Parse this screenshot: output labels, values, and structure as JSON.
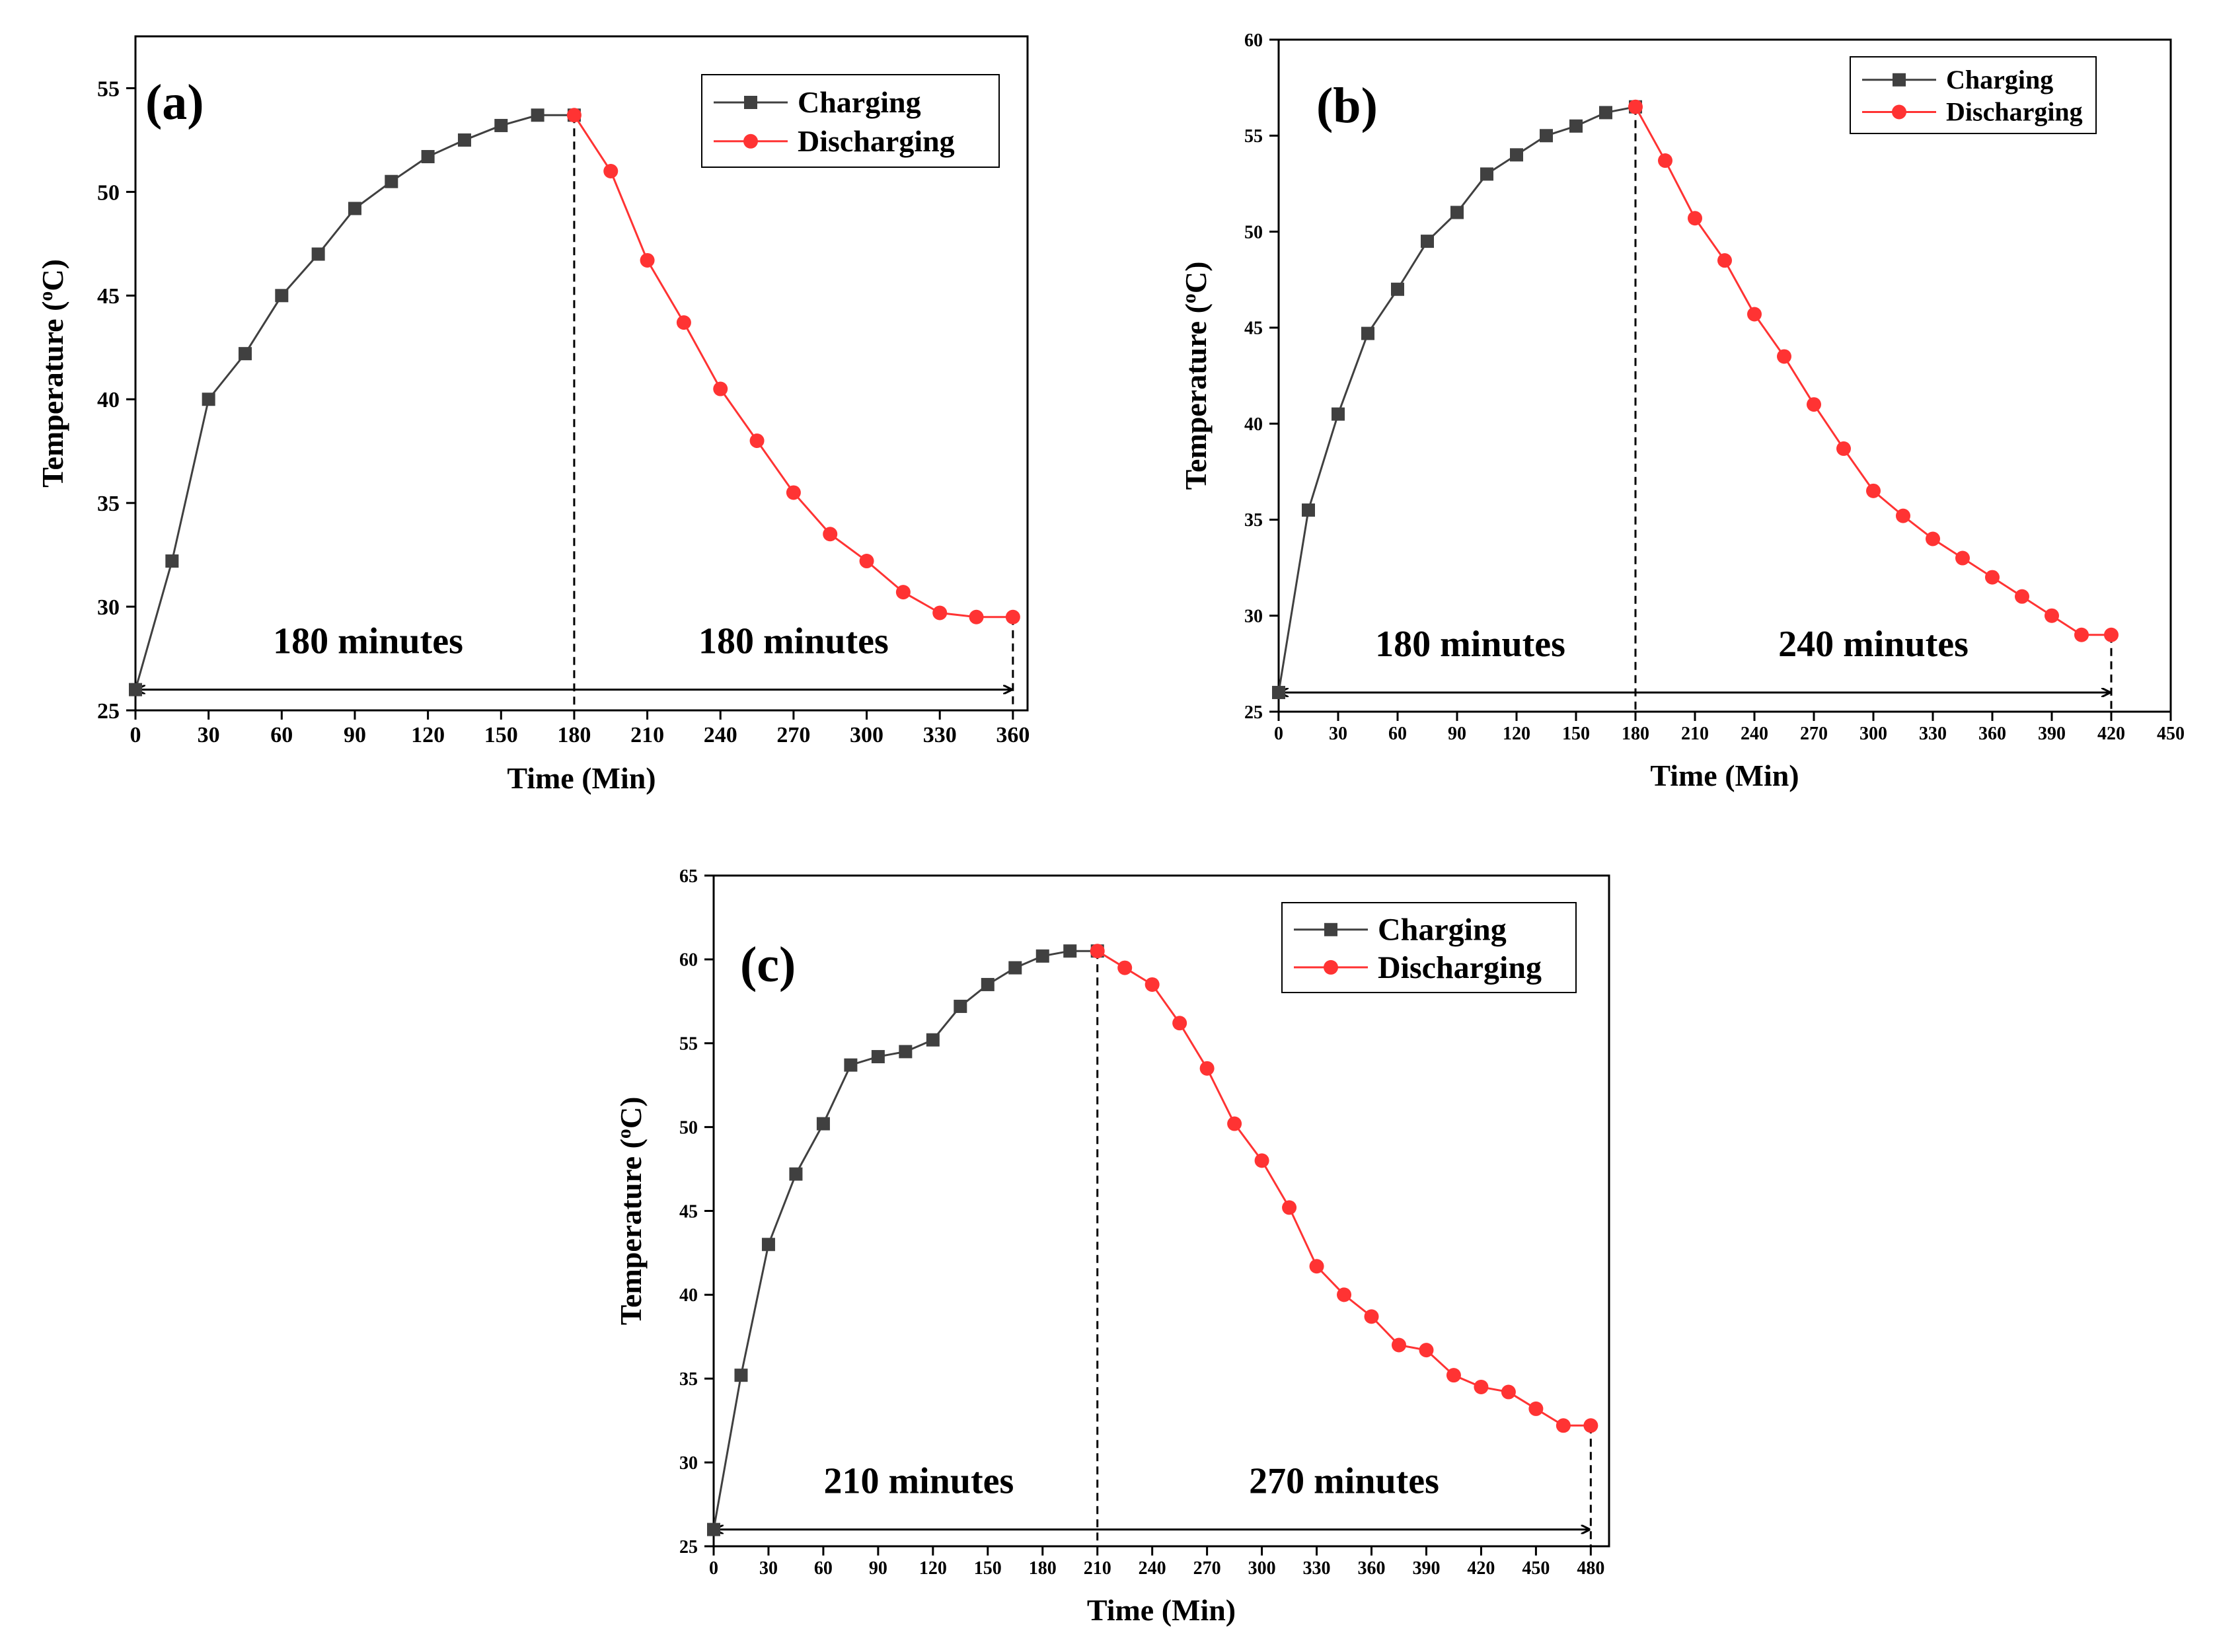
{
  "chart_data": [
    {
      "type": "line",
      "panel_label": "(a)",
      "xlabel": "Time (Min)",
      "ylabel_main": "Temperature (",
      "ylabel_sup": "o",
      "ylabel_end": "C)",
      "xlim": [
        0,
        366
      ],
      "ylim": [
        25,
        57.5
      ],
      "x_ticks": [
        0,
        30,
        60,
        90,
        120,
        150,
        180,
        210,
        240,
        270,
        300,
        330,
        360
      ],
      "y_ticks": [
        25,
        30,
        35,
        40,
        45,
        50,
        55
      ],
      "divider_x": 180,
      "end_x": 360,
      "arrow_y": 26,
      "annotations": [
        "180 minutes",
        "180 minutes"
      ],
      "series": [
        {
          "name": "Charging",
          "color": "#404040",
          "marker": "square",
          "x": [
            0,
            15,
            30,
            45,
            60,
            75,
            90,
            105,
            120,
            135,
            150,
            165,
            180
          ],
          "y": [
            26,
            32.2,
            40,
            42.2,
            45,
            47,
            49.2,
            50.5,
            51.7,
            52.5,
            53.2,
            53.7,
            53.7
          ]
        },
        {
          "name": "Discharging",
          "color": "#ff3333",
          "marker": "circle",
          "x": [
            180,
            195,
            210,
            225,
            240,
            255,
            270,
            285,
            300,
            315,
            330,
            345,
            360
          ],
          "y": [
            53.7,
            51,
            46.7,
            43.7,
            40.5,
            38,
            35.5,
            33.5,
            32.2,
            30.7,
            29.7,
            29.5,
            29.5
          ]
        }
      ]
    },
    {
      "type": "line",
      "panel_label": "(b)",
      "xlabel": "Time (Min)",
      "ylabel_main": "Temperature (",
      "ylabel_sup": "o",
      "ylabel_end": "C)",
      "xlim": [
        0,
        450
      ],
      "ylim": [
        25,
        60
      ],
      "x_ticks": [
        0,
        30,
        60,
        90,
        120,
        150,
        180,
        210,
        240,
        270,
        300,
        330,
        360,
        390,
        420,
        450
      ],
      "y_ticks": [
        25,
        30,
        35,
        40,
        45,
        50,
        55,
        60
      ],
      "divider_x": 180,
      "end_x": 420,
      "arrow_y": 26,
      "annotations": [
        "180 minutes",
        "240 minutes"
      ],
      "series": [
        {
          "name": "Charging",
          "color": "#404040",
          "marker": "square",
          "x": [
            0,
            15,
            30,
            45,
            60,
            75,
            90,
            105,
            120,
            135,
            150,
            165,
            180
          ],
          "y": [
            26,
            35.5,
            40.5,
            44.7,
            47,
            49.5,
            51,
            53,
            54,
            55,
            55.5,
            56.2,
            56.5
          ]
        },
        {
          "name": "Discharging",
          "color": "#ff3333",
          "marker": "circle",
          "x": [
            180,
            195,
            210,
            225,
            240,
            255,
            270,
            285,
            300,
            315,
            330,
            345,
            360,
            375,
            390,
            405,
            420
          ],
          "y": [
            56.5,
            53.7,
            50.7,
            48.5,
            45.7,
            43.5,
            41,
            38.7,
            36.5,
            35.2,
            34,
            33,
            32,
            31,
            30,
            29,
            29
          ]
        }
      ]
    },
    {
      "type": "line",
      "panel_label": "(c)",
      "xlabel": "Time (Min)",
      "ylabel_main": "Temperature (",
      "ylabel_sup": "o",
      "ylabel_end": "C)",
      "xlim": [
        0,
        490
      ],
      "ylim": [
        25,
        65
      ],
      "x_ticks": [
        0,
        30,
        60,
        90,
        120,
        150,
        180,
        210,
        240,
        270,
        300,
        330,
        360,
        390,
        420,
        450,
        480
      ],
      "y_ticks": [
        25,
        30,
        35,
        40,
        45,
        50,
        55,
        60,
        65
      ],
      "divider_x": 210,
      "end_x": 480,
      "arrow_y": 26,
      "annotations": [
        "210 minutes",
        "270 minutes"
      ],
      "series": [
        {
          "name": "Charging",
          "color": "#404040",
          "marker": "square",
          "x": [
            0,
            15,
            30,
            45,
            60,
            75,
            90,
            105,
            120,
            135,
            150,
            165,
            180,
            195,
            210
          ],
          "y": [
            26,
            35.2,
            43,
            47.2,
            50.2,
            53.7,
            54.2,
            54.5,
            55.2,
            57.2,
            58.5,
            59.5,
            60.2,
            60.5,
            60.5
          ]
        },
        {
          "name": "Discharging",
          "color": "#ff3333",
          "marker": "circle",
          "x": [
            210,
            225,
            240,
            255,
            270,
            285,
            300,
            315,
            330,
            345,
            360,
            375,
            390,
            405,
            420,
            435,
            450,
            465,
            480
          ],
          "y": [
            60.5,
            59.5,
            58.5,
            56.2,
            53.5,
            50.2,
            48,
            45.2,
            41.7,
            40,
            38.7,
            37,
            36.7,
            35.2,
            34.5,
            34.2,
            33.2,
            32.2,
            32.2
          ]
        }
      ]
    }
  ]
}
